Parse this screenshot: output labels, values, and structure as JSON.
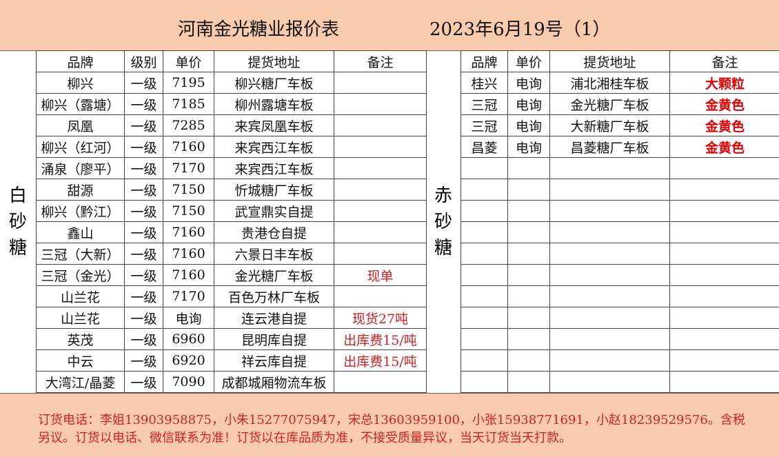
{
  "header": {
    "title": "河南金光糖业报价表",
    "date": "2023年6月19号（1）"
  },
  "white_sugar": {
    "label": "白砂糖",
    "columns": [
      "品牌",
      "级别",
      "单价",
      "提货地址",
      "备注"
    ],
    "rows": [
      [
        "柳兴",
        "一级",
        "7195",
        "柳兴糖厂车板",
        ""
      ],
      [
        "柳兴（露塘）",
        "一级",
        "7185",
        "柳州露塘车板",
        ""
      ],
      [
        "凤凰",
        "一级",
        "7285",
        "来宾凤凰车板",
        ""
      ],
      [
        "柳兴（红河）",
        "一级",
        "7160",
        "来宾西江车板",
        ""
      ],
      [
        "涌泉（廖平）",
        "一级",
        "7170",
        "来宾西江车板",
        ""
      ],
      [
        "甜源",
        "一级",
        "7150",
        "忻城糖厂车板",
        ""
      ],
      [
        "柳兴（黔江）",
        "一级",
        "7150",
        "武宣鼎实自提",
        ""
      ],
      [
        "鑫山",
        "一级",
        "7160",
        "贵港仓自提",
        ""
      ],
      [
        "三冠（大新）",
        "一级",
        "7160",
        "六景日丰车板",
        ""
      ],
      [
        "三冠（金光）",
        "一级",
        "7160",
        "金光糖厂车板",
        "现单"
      ],
      [
        "山兰花",
        "一级",
        "7170",
        "百色万林厂车板",
        ""
      ],
      [
        "山兰花",
        "一级",
        "电询",
        "连云港自提",
        "现货27吨"
      ],
      [
        "英茂",
        "一级",
        "6960",
        "昆明库自提",
        "出库费15/吨"
      ],
      [
        "中云",
        "一级",
        "6920",
        "祥云库自提",
        "出库费15/吨"
      ],
      [
        "大湾江/晶菱",
        "一级",
        "7090",
        "成都城厢物流车板",
        ""
      ]
    ]
  },
  "red_sugar": {
    "label": "赤砂糖",
    "columns": [
      "品牌",
      "单价",
      "提货地址",
      "备注"
    ],
    "rows": [
      [
        "桂兴",
        "电询",
        "浦北湘桂车板",
        "大颗粒"
      ],
      [
        "三冠",
        "电询",
        "金光糖厂车板",
        "金黄色"
      ],
      [
        "三冠",
        "电询",
        "大新糖厂车板",
        "金黄色"
      ],
      [
        "昌菱",
        "电询",
        "昌菱糖厂车板",
        "金黄色"
      ]
    ],
    "total_rows": 15
  },
  "footer": {
    "line1": "订货电话：李姐13903958875，小朱15277075947，宋总13603959100，小张15938771691，小赵18239529576。含税",
    "line2": "另议。订货以电话、微信联系为准！订货以在库品质为准，不接受质量异议，当天订货当天打款。"
  },
  "colors": {
    "band": "#f8cbad",
    "remark_red": "#d02020"
  }
}
